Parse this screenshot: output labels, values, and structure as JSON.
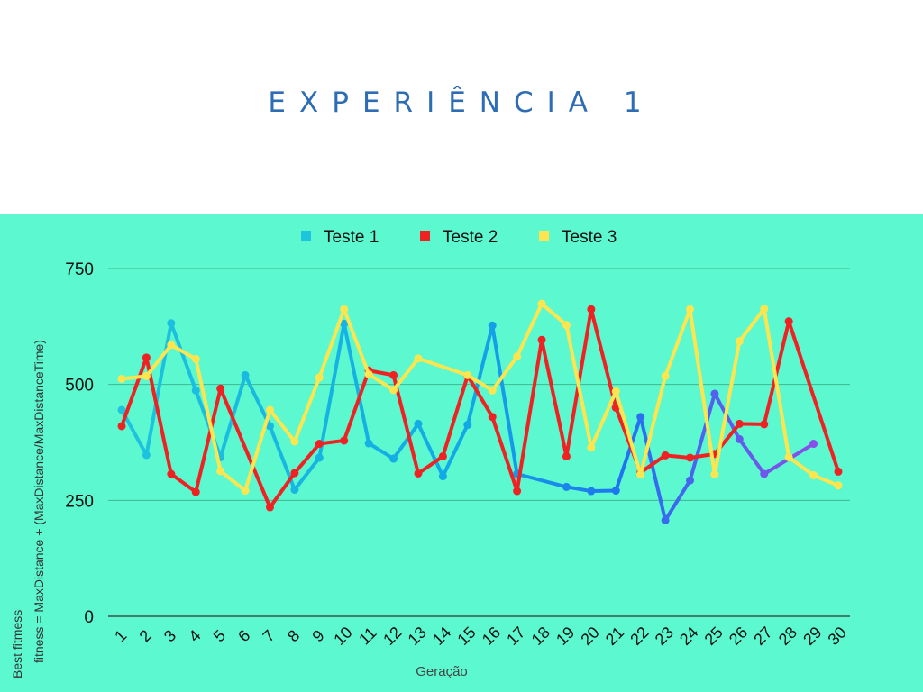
{
  "page": {
    "title": "EXPERIÊNCIA 1"
  },
  "colors": {
    "background": "#5cf8d0",
    "title": "#2e6db4",
    "teste1": "#1ec4dd",
    "teste2": "#ee2222",
    "teste3": "#fde54f"
  },
  "chart_data": {
    "type": "line",
    "title": "",
    "xlabel": "Geração",
    "ylabel_line1": "Best fitmess",
    "ylabel_line2": "fitness =  MaxDistance + (MaxDistance/MaxDistanceTime)",
    "ylim": [
      0,
      750
    ],
    "yticks": [
      0,
      250,
      500,
      750
    ],
    "grid": true,
    "legend_position": "top",
    "categories": [
      "1",
      "2",
      "3",
      "4",
      "5",
      "6",
      "7",
      "8",
      "9",
      "10",
      "11",
      "12",
      "13",
      "14",
      "15",
      "16",
      "17",
      "18",
      "19",
      "20",
      "21",
      "22",
      "23",
      "24",
      "25",
      "26",
      "27",
      "28",
      "29",
      "30"
    ],
    "series": [
      {
        "name": "Teste 1",
        "color": "#1ec4dd",
        "gradient_end": "#8a4ee8",
        "values": [
          445,
          348,
          632,
          487,
          343,
          520,
          410,
          273,
          342,
          631,
          373,
          340,
          415,
          302,
          413,
          627,
          307,
          null,
          279,
          270,
          271,
          430,
          207,
          293,
          480,
          382,
          307,
          null,
          372,
          null
        ]
      },
      {
        "name": "Teste 2",
        "color": "#ee2222",
        "values": [
          410,
          558,
          307,
          268,
          491,
          null,
          235,
          309,
          372,
          379,
          530,
          520,
          308,
          345,
          519,
          430,
          270,
          596,
          345,
          662,
          450,
          310,
          347,
          342,
          350,
          415,
          414,
          636,
          null,
          312
        ]
      },
      {
        "name": "Teste 3",
        "color": "#fde54f",
        "values": [
          512,
          518,
          585,
          555,
          313,
          271,
          445,
          377,
          515,
          662,
          522,
          488,
          556,
          null,
          520,
          487,
          560,
          674,
          628,
          364,
          485,
          306,
          518,
          662,
          306,
          593,
          663,
          343,
          304,
          282
        ]
      }
    ]
  }
}
